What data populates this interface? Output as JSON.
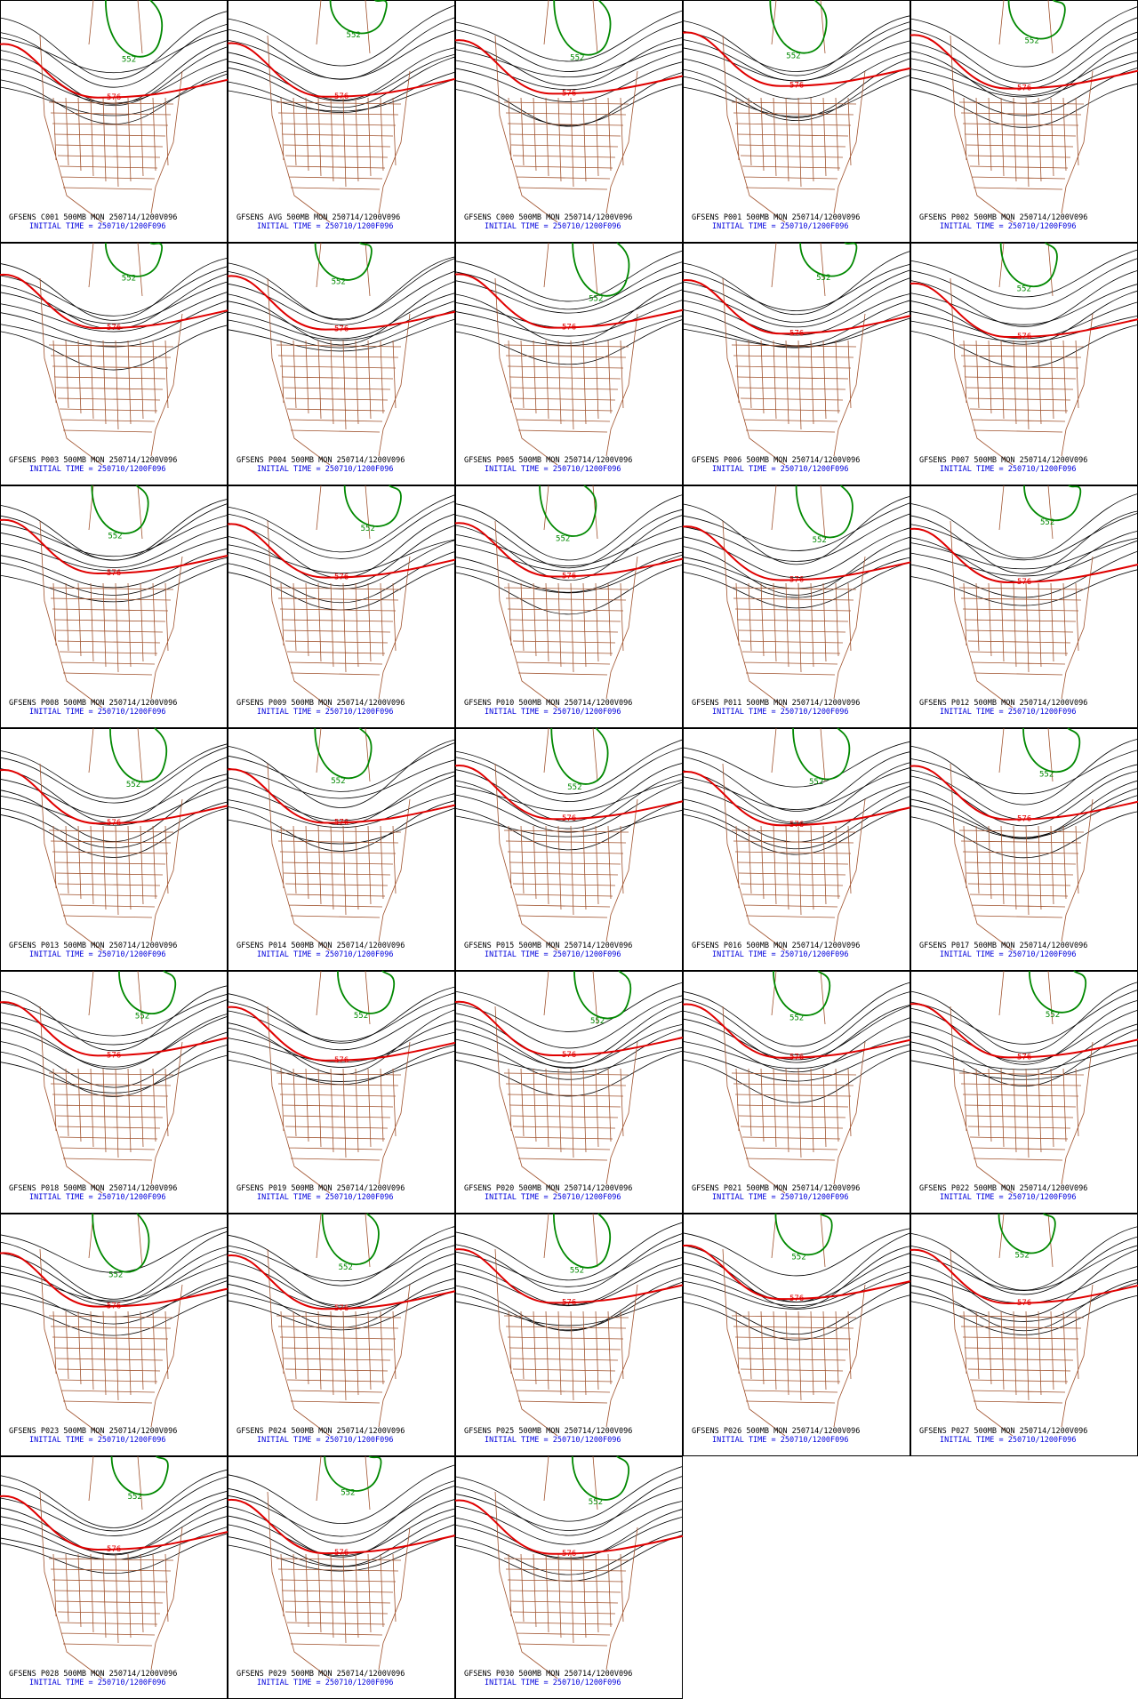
{
  "contour_labels": {
    "low": "552",
    "high": "576"
  },
  "panels": [
    {
      "title": "GFSENS C001 500MB MON 250714/1200V096",
      "init": "INITIAL TIME = 250710/1200F096"
    },
    {
      "title": "GFSENS AVG 500MB MON 250714/1200V096",
      "init": "INITIAL TIME = 250710/1200F096"
    },
    {
      "title": "GFSENS C000 500MB MON 250714/1200V096",
      "init": "INITIAL TIME = 250710/1200F096"
    },
    {
      "title": "GFSENS P001 500MB MON 250714/1200V096",
      "init": "INITIAL TIME = 250710/1200F096"
    },
    {
      "title": "GFSENS P002 500MB MON 250714/1200V096",
      "init": "INITIAL TIME = 250710/1200F096"
    },
    {
      "title": "GFSENS P003 500MB MON 250714/1200V096",
      "init": "INITIAL TIME = 250710/1200F096"
    },
    {
      "title": "GFSENS P004 500MB MON 250714/1200V096",
      "init": "INITIAL TIME = 250710/1200F096"
    },
    {
      "title": "GFSENS P005 500MB MON 250714/1200V096",
      "init": "INITIAL TIME = 250710/1200F096"
    },
    {
      "title": "GFSENS P006 500MB MON 250714/1200V096",
      "init": "INITIAL TIME = 250710/1200F096"
    },
    {
      "title": "GFSENS P007 500MB MON 250714/1200V096",
      "init": "INITIAL TIME = 250710/1200F096"
    },
    {
      "title": "GFSENS P008 500MB MON 250714/1200V096",
      "init": "INITIAL TIME = 250710/1200F096"
    },
    {
      "title": "GFSENS P009 500MB MON 250714/1200V096",
      "init": "INITIAL TIME = 250710/1200F096"
    },
    {
      "title": "GFSENS P010 500MB MON 250714/1200V096",
      "init": "INITIAL TIME = 250710/1200F096"
    },
    {
      "title": "GFSENS P011 500MB MON 250714/1200V096",
      "init": "INITIAL TIME = 250710/1200F096"
    },
    {
      "title": "GFSENS P012 500MB MON 250714/1200V096",
      "init": "INITIAL TIME = 250710/1200F096"
    },
    {
      "title": "GFSENS P013 500MB MON 250714/1200V096",
      "init": "INITIAL TIME = 250710/1200F096"
    },
    {
      "title": "GFSENS P014 500MB MON 250714/1200V096",
      "init": "INITIAL TIME = 250710/1200F096"
    },
    {
      "title": "GFSENS P015 500MB MON 250714/1200V096",
      "init": "INITIAL TIME = 250710/1200F096"
    },
    {
      "title": "GFSENS P016 500MB MON 250714/1200V096",
      "init": "INITIAL TIME = 250710/1200F096"
    },
    {
      "title": "GFSENS P017 500MB MON 250714/1200V096",
      "init": "INITIAL TIME = 250710/1200F096"
    },
    {
      "title": "GFSENS P018 500MB MON 250714/1200V096",
      "init": "INITIAL TIME = 250710/1200F096"
    },
    {
      "title": "GFSENS P019 500MB MON 250714/1200V096",
      "init": "INITIAL TIME = 250710/1200F096"
    },
    {
      "title": "GFSENS P020 500MB MON 250714/1200V096",
      "init": "INITIAL TIME = 250710/1200F096"
    },
    {
      "title": "GFSENS P021 500MB MON 250714/1200V096",
      "init": "INITIAL TIME = 250710/1200F096"
    },
    {
      "title": "GFSENS P022 500MB MON 250714/1200V096",
      "init": "INITIAL TIME = 250710/1200F096"
    },
    {
      "title": "GFSENS P023 500MB MON 250714/1200V096",
      "init": "INITIAL TIME = 250710/1200F096"
    },
    {
      "title": "GFSENS P024 500MB MON 250714/1200V096",
      "init": "INITIAL TIME = 250710/1200F096"
    },
    {
      "title": "GFSENS P025 500MB MON 250714/1200V096",
      "init": "INITIAL TIME = 250710/1200F096"
    },
    {
      "title": "GFSENS P026 500MB MON 250714/1200V096",
      "init": "INITIAL TIME = 250710/1200F096"
    },
    {
      "title": "GFSENS P027 500MB MON 250714/1200V096",
      "init": "INITIAL TIME = 250710/1200F096"
    },
    {
      "title": "GFSENS P028 500MB MON 250714/1200V096",
      "init": "INITIAL TIME = 250710/1200F096"
    },
    {
      "title": "GFSENS P029 500MB MON 250714/1200V096",
      "init": "INITIAL TIME = 250710/1200F096"
    },
    {
      "title": "GFSENS P030 500MB MON 250714/1200V096",
      "init": "INITIAL TIME = 250710/1200F096"
    }
  ]
}
